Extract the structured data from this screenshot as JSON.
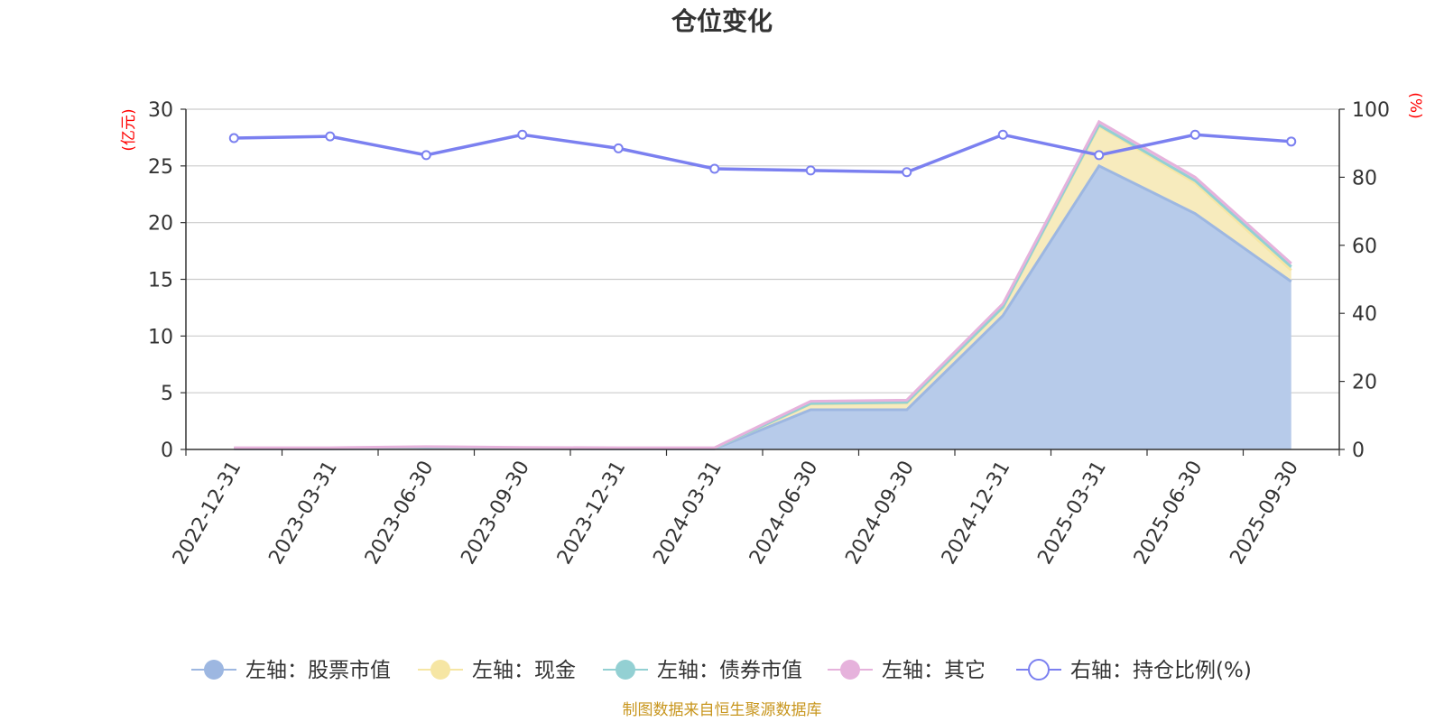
{
  "source_note": "制图数据来自恒生聚源数据库",
  "chart_data": {
    "type": "area",
    "title": "仓位变化",
    "left_axis": {
      "unit": "(亿元)",
      "min": 0,
      "max": 30,
      "ticks": [
        0,
        5,
        10,
        15,
        20,
        25,
        30
      ]
    },
    "right_axis": {
      "unit": "(%)",
      "min": 0,
      "max": 100,
      "ticks": [
        0,
        20,
        40,
        60,
        80,
        100
      ]
    },
    "categories": [
      "2022-12-31",
      "2023-03-31",
      "2023-06-30",
      "2023-09-30",
      "2023-12-31",
      "2024-03-31",
      "2024-06-30",
      "2024-09-30",
      "2024-12-31",
      "2025-03-31",
      "2025-06-30",
      "2025-09-30"
    ],
    "grid": true,
    "legend_position": "bottom",
    "series": [
      {
        "name": "左轴：股票市值",
        "axis": "left",
        "stacked": true,
        "color": "#9db7e1",
        "fill": "#b7cbea",
        "values": [
          0.05,
          0.05,
          0.1,
          0.08,
          0.05,
          0.05,
          3.5,
          3.5,
          11.8,
          25.0,
          20.8,
          14.8
        ]
      },
      {
        "name": "左轴：现金",
        "axis": "left",
        "stacked": true,
        "color": "#f6e6a4",
        "fill": "#f7ebbd",
        "values": [
          0.05,
          0.05,
          0.1,
          0.05,
          0.05,
          0.05,
          0.5,
          0.6,
          0.7,
          3.5,
          2.7,
          1.0
        ]
      },
      {
        "name": "左轴：债券市值",
        "axis": "left",
        "stacked": true,
        "color": "#93d0d3",
        "fill": "#b8dfe0",
        "values": [
          0,
          0,
          0,
          0,
          0,
          0,
          0.05,
          0.05,
          0.05,
          0.1,
          0.2,
          0.3
        ]
      },
      {
        "name": "左轴：其它",
        "axis": "left",
        "stacked": true,
        "color": "#e6b2dc",
        "fill": "#efcbe8",
        "values": [
          0.05,
          0.05,
          0.05,
          0.05,
          0.05,
          0.05,
          0.2,
          0.2,
          0.3,
          0.3,
          0.3,
          0.3
        ]
      },
      {
        "name": "右轴：持仓比例(%)",
        "axis": "right",
        "stacked": false,
        "color": "#7b80f0",
        "values": [
          91.5,
          92.0,
          86.5,
          92.5,
          88.5,
          82.5,
          82.0,
          81.5,
          92.5,
          86.5,
          92.5,
          90.5
        ]
      }
    ]
  }
}
